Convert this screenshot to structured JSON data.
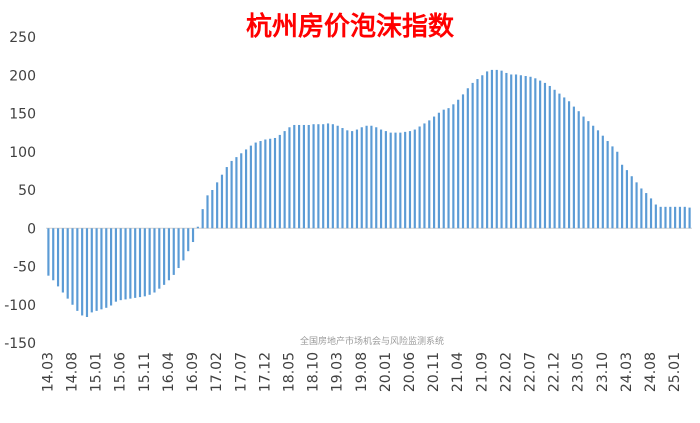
{
  "chart_data": {
    "type": "bar",
    "title": "杭州房价泡沫指数",
    "watermark": "全国房地产市场机会与风险监测系统",
    "ylim": [
      -150,
      250
    ],
    "y_ticks": [
      250,
      200,
      150,
      100,
      50,
      0,
      -50,
      -100,
      -150
    ],
    "x_tick_labels": [
      "14.03",
      "14.08",
      "15.01",
      "15.06",
      "15.11",
      "16.04",
      "16.09",
      "17.02",
      "17.07",
      "17.12",
      "18.05",
      "18.10",
      "19.03",
      "19.08",
      "20.01",
      "20.06",
      "20.11",
      "21.04",
      "21.09",
      "22.02",
      "22.07",
      "22.12",
      "23.05",
      "23.10",
      "24.03",
      "24.08",
      "25.01"
    ],
    "start_month": "2014-03",
    "bar_color": "#5b9bd5",
    "values": [
      -62,
      -68,
      -76,
      -84,
      -92,
      -100,
      -108,
      -114,
      -116,
      -110,
      -108,
      -106,
      -104,
      -101,
      -96,
      -94,
      -93,
      -92,
      -91,
      -90,
      -89,
      -87,
      -84,
      -79,
      -74,
      -68,
      -61,
      -52,
      -42,
      -30,
      -18,
      2,
      25,
      43,
      50,
      60,
      70,
      80,
      88,
      93,
      98,
      103,
      108,
      112,
      114,
      116,
      117,
      118,
      122,
      127,
      132,
      135,
      135,
      135,
      135,
      136,
      136,
      136,
      137,
      136,
      134,
      131,
      128,
      127,
      129,
      132,
      134,
      134,
      132,
      129,
      127,
      125,
      125,
      125,
      126,
      127,
      129,
      133,
      137,
      141,
      146,
      151,
      155,
      157,
      162,
      168,
      175,
      183,
      190,
      195,
      200,
      205,
      207,
      207,
      206,
      203,
      201,
      201,
      200,
      199,
      198,
      196,
      193,
      190,
      186,
      181,
      176,
      171,
      166,
      159,
      153,
      146,
      140,
      134,
      128,
      121,
      114,
      107,
      100,
      83,
      76,
      68,
      60,
      52,
      46,
      39,
      31,
      28,
      28,
      28,
      28,
      28,
      28,
      27
    ]
  }
}
